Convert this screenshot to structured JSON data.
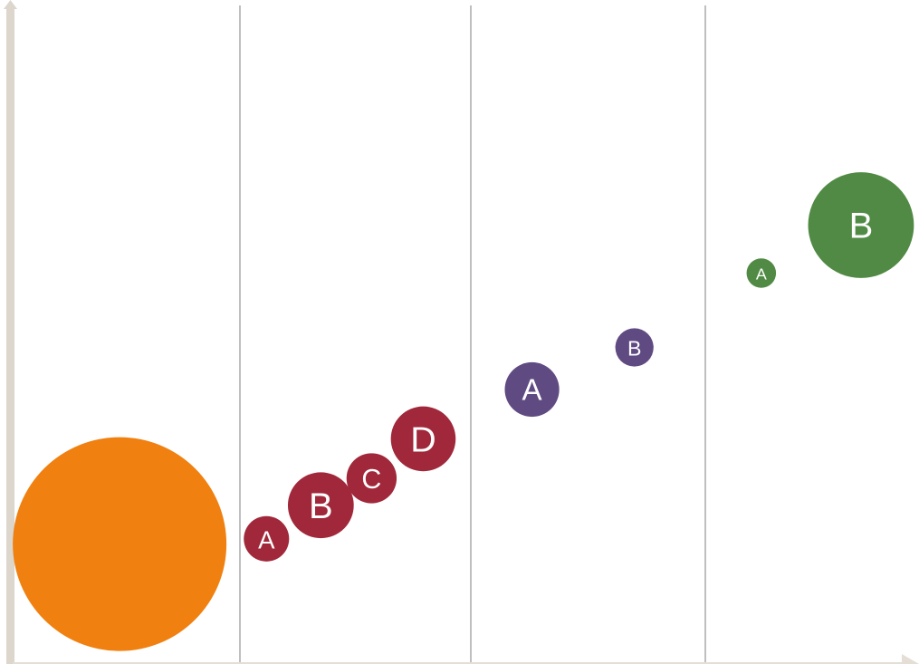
{
  "chart_data": {
    "type": "bubble",
    "title": "",
    "xlabel": "",
    "ylabel": "",
    "grid": "vertical-lines",
    "legend": "none",
    "xlim": [
      0,
      100
    ],
    "ylim": [
      0,
      100
    ],
    "colors": {
      "orange": "#f08010",
      "red": "#a0283a",
      "purple": "#604a82",
      "green": "#508a44",
      "axis": "#ddd6cc",
      "grid": "#bfbfbf"
    },
    "series": [
      {
        "name": "",
        "color": "#f08010",
        "points": [
          {
            "label": "",
            "x": 11.8,
            "y": 18.1,
            "size": 100
          }
        ]
      },
      {
        "name": "",
        "color": "#a0283a",
        "points": [
          {
            "label": "A",
            "x": 28.0,
            "y": 18.9,
            "size": 4.5
          },
          {
            "label": "B",
            "x": 34.0,
            "y": 24.0,
            "size": 9.5
          },
          {
            "label": "C",
            "x": 39.6,
            "y": 28.1,
            "size": 5.5
          },
          {
            "label": "D",
            "x": 45.3,
            "y": 34.1,
            "size": 9.2
          }
        ]
      },
      {
        "name": "",
        "color": "#604a82",
        "points": [
          {
            "label": "A",
            "x": 57.3,
            "y": 41.6,
            "size": 6.5
          },
          {
            "label": "B",
            "x": 68.6,
            "y": 48.0,
            "size": 3.2
          }
        ]
      },
      {
        "name": "",
        "color": "#508a44",
        "points": [
          {
            "label": "A",
            "x": 82.6,
            "y": 59.3,
            "size": 1.9
          },
          {
            "label": "B",
            "x": 93.6,
            "y": 66.6,
            "size": 24.5
          }
        ]
      }
    ]
  }
}
